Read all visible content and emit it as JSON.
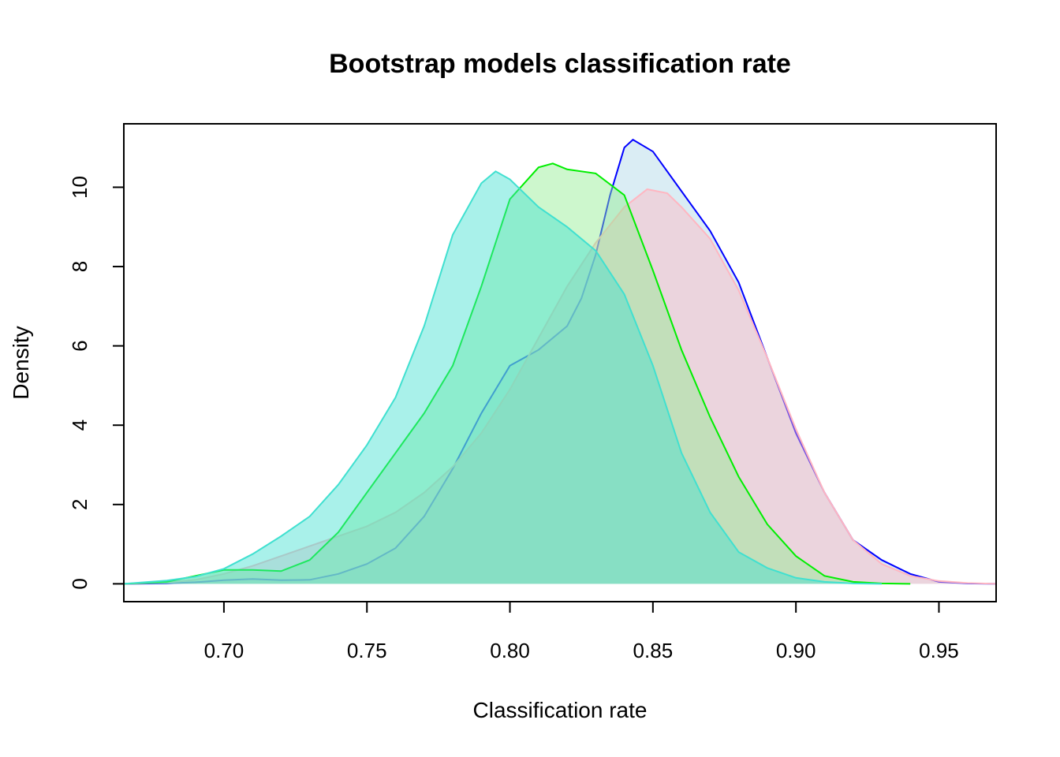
{
  "chart_data": {
    "type": "area",
    "title": "Bootstrap models classification rate",
    "xlabel": "Classification rate",
    "ylabel": "Density",
    "xlim": [
      0.665,
      0.97
    ],
    "ylim": [
      -0.45,
      11.6
    ],
    "x_ticks": [
      "0.70",
      "0.75",
      "0.80",
      "0.85",
      "0.90",
      "0.95"
    ],
    "y_ticks": [
      "0",
      "2",
      "4",
      "6",
      "8",
      "10"
    ],
    "grid": false,
    "legend": "none",
    "series": [
      {
        "stroke": "#0000ff",
        "fill": "#add8e6",
        "fill_opacity": 0.45,
        "points": [
          [
            0.665,
            0
          ],
          [
            0.68,
            0.01
          ],
          [
            0.69,
            0.04
          ],
          [
            0.7,
            0.09
          ],
          [
            0.71,
            0.12
          ],
          [
            0.72,
            0.09
          ],
          [
            0.73,
            0.1
          ],
          [
            0.74,
            0.25
          ],
          [
            0.75,
            0.5
          ],
          [
            0.76,
            0.9
          ],
          [
            0.77,
            1.7
          ],
          [
            0.78,
            2.9
          ],
          [
            0.79,
            4.3
          ],
          [
            0.8,
            5.5
          ],
          [
            0.81,
            5.9
          ],
          [
            0.82,
            6.5
          ],
          [
            0.825,
            7.2
          ],
          [
            0.83,
            8.3
          ],
          [
            0.835,
            9.8
          ],
          [
            0.84,
            11.0
          ],
          [
            0.843,
            11.2
          ],
          [
            0.85,
            10.9
          ],
          [
            0.86,
            9.9
          ],
          [
            0.87,
            8.9
          ],
          [
            0.88,
            7.6
          ],
          [
            0.89,
            5.7
          ],
          [
            0.9,
            3.8
          ],
          [
            0.91,
            2.3
          ],
          [
            0.92,
            1.1
          ],
          [
            0.93,
            0.6
          ],
          [
            0.94,
            0.25
          ],
          [
            0.95,
            0.05
          ],
          [
            0.96,
            0.01
          ],
          [
            0.97,
            0
          ]
        ]
      },
      {
        "stroke": "#ffb6c1",
        "fill": "#ffb6c1",
        "fill_opacity": 0.45,
        "points": [
          [
            0.665,
            0
          ],
          [
            0.68,
            0.03
          ],
          [
            0.69,
            0.1
          ],
          [
            0.7,
            0.25
          ],
          [
            0.71,
            0.45
          ],
          [
            0.72,
            0.7
          ],
          [
            0.73,
            0.95
          ],
          [
            0.74,
            1.2
          ],
          [
            0.75,
            1.45
          ],
          [
            0.76,
            1.8
          ],
          [
            0.77,
            2.3
          ],
          [
            0.78,
            2.95
          ],
          [
            0.79,
            3.8
          ],
          [
            0.8,
            4.9
          ],
          [
            0.81,
            6.2
          ],
          [
            0.82,
            7.5
          ],
          [
            0.83,
            8.6
          ],
          [
            0.84,
            9.5
          ],
          [
            0.848,
            9.95
          ],
          [
            0.855,
            9.85
          ],
          [
            0.86,
            9.5
          ],
          [
            0.87,
            8.7
          ],
          [
            0.88,
            7.4
          ],
          [
            0.89,
            5.7
          ],
          [
            0.9,
            3.9
          ],
          [
            0.91,
            2.3
          ],
          [
            0.92,
            1.1
          ],
          [
            0.93,
            0.5
          ],
          [
            0.94,
            0.2
          ],
          [
            0.95,
            0.07
          ],
          [
            0.96,
            0.02
          ],
          [
            0.97,
            0
          ]
        ]
      },
      {
        "stroke": "#00ee00",
        "fill": "#90ee90",
        "fill_opacity": 0.45,
        "points": [
          [
            0.665,
            0
          ],
          [
            0.68,
            0.05
          ],
          [
            0.69,
            0.2
          ],
          [
            0.7,
            0.35
          ],
          [
            0.71,
            0.35
          ],
          [
            0.72,
            0.32
          ],
          [
            0.73,
            0.6
          ],
          [
            0.74,
            1.3
          ],
          [
            0.75,
            2.3
          ],
          [
            0.76,
            3.3
          ],
          [
            0.77,
            4.3
          ],
          [
            0.78,
            5.5
          ],
          [
            0.79,
            7.5
          ],
          [
            0.8,
            9.7
          ],
          [
            0.81,
            10.5
          ],
          [
            0.815,
            10.6
          ],
          [
            0.82,
            10.45
          ],
          [
            0.83,
            10.35
          ],
          [
            0.84,
            9.8
          ],
          [
            0.85,
            7.9
          ],
          [
            0.86,
            5.9
          ],
          [
            0.87,
            4.2
          ],
          [
            0.88,
            2.7
          ],
          [
            0.89,
            1.5
          ],
          [
            0.9,
            0.7
          ],
          [
            0.91,
            0.2
          ],
          [
            0.92,
            0.05
          ],
          [
            0.93,
            0.01
          ],
          [
            0.94,
            0
          ]
        ]
      },
      {
        "stroke": "#40e0d0",
        "fill": "#40e0d0",
        "fill_opacity": 0.45,
        "points": [
          [
            0.665,
            0
          ],
          [
            0.68,
            0.08
          ],
          [
            0.69,
            0.18
          ],
          [
            0.7,
            0.38
          ],
          [
            0.71,
            0.75
          ],
          [
            0.72,
            1.2
          ],
          [
            0.73,
            1.7
          ],
          [
            0.74,
            2.5
          ],
          [
            0.75,
            3.5
          ],
          [
            0.76,
            4.7
          ],
          [
            0.77,
            6.5
          ],
          [
            0.78,
            8.8
          ],
          [
            0.79,
            10.1
          ],
          [
            0.795,
            10.4
          ],
          [
            0.8,
            10.2
          ],
          [
            0.81,
            9.5
          ],
          [
            0.82,
            9.0
          ],
          [
            0.83,
            8.4
          ],
          [
            0.84,
            7.3
          ],
          [
            0.85,
            5.5
          ],
          [
            0.86,
            3.3
          ],
          [
            0.87,
            1.8
          ],
          [
            0.88,
            0.8
          ],
          [
            0.89,
            0.4
          ],
          [
            0.9,
            0.15
          ],
          [
            0.91,
            0.05
          ],
          [
            0.92,
            0.01
          ],
          [
            0.93,
            0
          ]
        ]
      }
    ]
  }
}
